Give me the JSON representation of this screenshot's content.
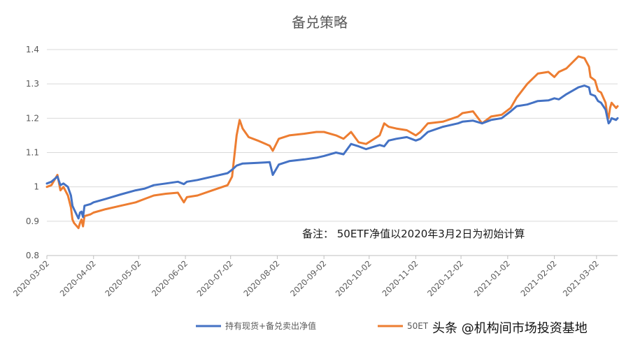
{
  "chart_data": {
    "type": "line",
    "title": "备兑策略",
    "xlabel": "",
    "ylabel": "",
    "ylim": [
      0.8,
      1.4
    ],
    "yticks": [
      "0.8",
      "0.9",
      "1",
      "1.1",
      "1.2",
      "1.3",
      "1.4"
    ],
    "xticks": [
      "2020-03-02",
      "2020-04-02",
      "2020-05-02",
      "2020-06-02",
      "2020-07-02",
      "2020-08-02",
      "2020-09-02",
      "2020-10-02",
      "2020-11-02",
      "2020-12-02",
      "2021-01-02",
      "2021-02-02",
      "2021-03-02"
    ],
    "grid": true,
    "legend_position": "bottom",
    "annotation": "备注：  50ETF净值以2020年3月2日为初始计算",
    "watermark": "头条 @机构间市场投资基地",
    "series": [
      {
        "name": "持有现货+备兑卖出净值",
        "color": "#4472C4",
        "points": [
          [
            "2020-03-02",
            1.01
          ],
          [
            "2020-03-05",
            1.015
          ],
          [
            "2020-03-09",
            1.03
          ],
          [
            "2020-03-11",
            1.005
          ],
          [
            "2020-03-13",
            1.01
          ],
          [
            "2020-03-16",
            1.0
          ],
          [
            "2020-03-18",
            0.975
          ],
          [
            "2020-03-19",
            0.945
          ],
          [
            "2020-03-20",
            0.935
          ],
          [
            "2020-03-23",
            0.908
          ],
          [
            "2020-03-24",
            0.925
          ],
          [
            "2020-03-25",
            0.928
          ],
          [
            "2020-03-26",
            0.912
          ],
          [
            "2020-03-27",
            0.945
          ],
          [
            "2020-03-31",
            0.95
          ],
          [
            "2020-04-02",
            0.955
          ],
          [
            "2020-04-10",
            0.965
          ],
          [
            "2020-04-20",
            0.978
          ],
          [
            "2020-04-30",
            0.99
          ],
          [
            "2020-05-06",
            0.995
          ],
          [
            "2020-05-12",
            1.005
          ],
          [
            "2020-05-20",
            1.01
          ],
          [
            "2020-05-28",
            1.015
          ],
          [
            "2020-06-01",
            1.008
          ],
          [
            "2020-06-03",
            1.015
          ],
          [
            "2020-06-10",
            1.02
          ],
          [
            "2020-06-20",
            1.03
          ],
          [
            "2020-06-30",
            1.04
          ],
          [
            "2020-07-03",
            1.05
          ],
          [
            "2020-07-06",
            1.062
          ],
          [
            "2020-07-10",
            1.068
          ],
          [
            "2020-07-20",
            1.07
          ],
          [
            "2020-07-28",
            1.072
          ],
          [
            "2020-07-30",
            1.035
          ],
          [
            "2020-08-03",
            1.065
          ],
          [
            "2020-08-10",
            1.075
          ],
          [
            "2020-08-20",
            1.08
          ],
          [
            "2020-08-28",
            1.085
          ],
          [
            "2020-09-02",
            1.09
          ],
          [
            "2020-09-10",
            1.1
          ],
          [
            "2020-09-15",
            1.095
          ],
          [
            "2020-09-20",
            1.125
          ],
          [
            "2020-09-25",
            1.118
          ],
          [
            "2020-09-30",
            1.11
          ],
          [
            "2020-10-09",
            1.122
          ],
          [
            "2020-10-12",
            1.118
          ],
          [
            "2020-10-15",
            1.135
          ],
          [
            "2020-10-20",
            1.14
          ],
          [
            "2020-10-27",
            1.145
          ],
          [
            "2020-11-02",
            1.135
          ],
          [
            "2020-11-05",
            1.14
          ],
          [
            "2020-11-10",
            1.16
          ],
          [
            "2020-11-20",
            1.175
          ],
          [
            "2020-11-30",
            1.185
          ],
          [
            "2020-12-03",
            1.19
          ],
          [
            "2020-12-10",
            1.193
          ],
          [
            "2020-12-16",
            1.185
          ],
          [
            "2020-12-22",
            1.195
          ],
          [
            "2020-12-29",
            1.2
          ],
          [
            "2021-01-04",
            1.22
          ],
          [
            "2021-01-08",
            1.235
          ],
          [
            "2021-01-15",
            1.24
          ],
          [
            "2021-01-22",
            1.25
          ],
          [
            "2021-01-29",
            1.252
          ],
          [
            "2021-02-02",
            1.258
          ],
          [
            "2021-02-05",
            1.255
          ],
          [
            "2021-02-10",
            1.27
          ],
          [
            "2021-02-18",
            1.29
          ],
          [
            "2021-02-22",
            1.295
          ],
          [
            "2021-02-25",
            1.29
          ],
          [
            "2021-02-26",
            1.27
          ],
          [
            "2021-03-01",
            1.265
          ],
          [
            "2021-03-03",
            1.25
          ],
          [
            "2021-03-05",
            1.245
          ],
          [
            "2021-03-08",
            1.225
          ],
          [
            "2021-03-09",
            1.205
          ],
          [
            "2021-03-10",
            1.185
          ],
          [
            "2021-03-11",
            1.19
          ],
          [
            "2021-03-12",
            1.2
          ],
          [
            "2021-03-15",
            1.195
          ],
          [
            "2021-03-16",
            1.2
          ]
        ]
      },
      {
        "name": "50ETF净值",
        "color": "#ED7D31",
        "points": [
          [
            "2020-03-02",
            1.0
          ],
          [
            "2020-03-05",
            1.005
          ],
          [
            "2020-03-09",
            1.035
          ],
          [
            "2020-03-11",
            0.99
          ],
          [
            "2020-03-13",
            1.0
          ],
          [
            "2020-03-16",
            0.975
          ],
          [
            "2020-03-18",
            0.94
          ],
          [
            "2020-03-19",
            0.905
          ],
          [
            "2020-03-20",
            0.895
          ],
          [
            "2020-03-23",
            0.88
          ],
          [
            "2020-03-24",
            0.895
          ],
          [
            "2020-03-25",
            0.905
          ],
          [
            "2020-03-26",
            0.885
          ],
          [
            "2020-03-27",
            0.915
          ],
          [
            "2020-03-31",
            0.92
          ],
          [
            "2020-04-02",
            0.925
          ],
          [
            "2020-04-10",
            0.935
          ],
          [
            "2020-04-20",
            0.945
          ],
          [
            "2020-04-30",
            0.955
          ],
          [
            "2020-05-06",
            0.965
          ],
          [
            "2020-05-12",
            0.975
          ],
          [
            "2020-05-20",
            0.98
          ],
          [
            "2020-05-28",
            0.983
          ],
          [
            "2020-06-01",
            0.955
          ],
          [
            "2020-06-03",
            0.97
          ],
          [
            "2020-06-10",
            0.975
          ],
          [
            "2020-06-20",
            0.99
          ],
          [
            "2020-06-30",
            1.005
          ],
          [
            "2020-07-03",
            1.03
          ],
          [
            "2020-07-06",
            1.15
          ],
          [
            "2020-07-08",
            1.195
          ],
          [
            "2020-07-10",
            1.17
          ],
          [
            "2020-07-14",
            1.145
          ],
          [
            "2020-07-20",
            1.135
          ],
          [
            "2020-07-28",
            1.12
          ],
          [
            "2020-07-30",
            1.105
          ],
          [
            "2020-08-03",
            1.14
          ],
          [
            "2020-08-10",
            1.15
          ],
          [
            "2020-08-20",
            1.155
          ],
          [
            "2020-08-28",
            1.16
          ],
          [
            "2020-09-02",
            1.16
          ],
          [
            "2020-09-10",
            1.15
          ],
          [
            "2020-09-15",
            1.14
          ],
          [
            "2020-09-20",
            1.16
          ],
          [
            "2020-09-25",
            1.13
          ],
          [
            "2020-09-30",
            1.125
          ],
          [
            "2020-10-09",
            1.15
          ],
          [
            "2020-10-12",
            1.185
          ],
          [
            "2020-10-15",
            1.175
          ],
          [
            "2020-10-20",
            1.17
          ],
          [
            "2020-10-27",
            1.165
          ],
          [
            "2020-11-02",
            1.15
          ],
          [
            "2020-11-05",
            1.16
          ],
          [
            "2020-11-10",
            1.185
          ],
          [
            "2020-11-20",
            1.19
          ],
          [
            "2020-11-30",
            1.205
          ],
          [
            "2020-12-03",
            1.215
          ],
          [
            "2020-12-10",
            1.22
          ],
          [
            "2020-12-16",
            1.185
          ],
          [
            "2020-12-22",
            1.205
          ],
          [
            "2020-12-29",
            1.21
          ],
          [
            "2021-01-04",
            1.23
          ],
          [
            "2021-01-08",
            1.26
          ],
          [
            "2021-01-15",
            1.3
          ],
          [
            "2021-01-22",
            1.33
          ],
          [
            "2021-01-29",
            1.335
          ],
          [
            "2021-02-02",
            1.32
          ],
          [
            "2021-02-05",
            1.335
          ],
          [
            "2021-02-10",
            1.345
          ],
          [
            "2021-02-18",
            1.38
          ],
          [
            "2021-02-22",
            1.375
          ],
          [
            "2021-02-25",
            1.35
          ],
          [
            "2021-02-26",
            1.32
          ],
          [
            "2021-03-01",
            1.31
          ],
          [
            "2021-03-03",
            1.28
          ],
          [
            "2021-03-05",
            1.275
          ],
          [
            "2021-03-08",
            1.245
          ],
          [
            "2021-03-09",
            1.215
          ],
          [
            "2021-03-10",
            1.2
          ],
          [
            "2021-03-11",
            1.23
          ],
          [
            "2021-03-12",
            1.245
          ],
          [
            "2021-03-15",
            1.23
          ],
          [
            "2021-03-16",
            1.235
          ]
        ]
      }
    ]
  }
}
